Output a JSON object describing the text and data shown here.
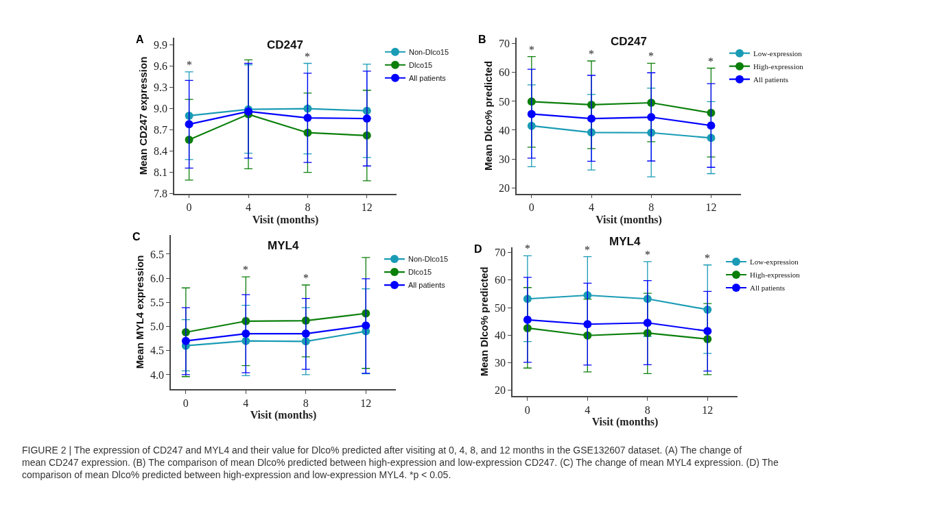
{
  "chart_data": [
    {
      "type": "line",
      "title": "CD247",
      "xlabel": "Visit (months)",
      "ylabel": "Mean CD247 expression",
      "x": [
        0,
        4,
        8,
        12
      ],
      "xlim": [
        -1,
        14
      ],
      "xticks": [
        0,
        4,
        8,
        12
      ],
      "ylim": [
        7.8,
        10.0
      ],
      "yticks": [
        7.8,
        8.1,
        8.4,
        8.7,
        {
          "value": 9,
          "label": "9.0"
        },
        9.3,
        9.6,
        9.9
      ],
      "legend": "right",
      "marker": "circle",
      "line_style": "solid",
      "series": [
        {
          "name": "Non-Dlco15",
          "color": "#1a9bb5",
          "values": [
            8.9,
            8.99,
            9.0,
            8.97
          ],
          "errors": [
            [
              8.28,
              9.52
            ],
            [
              8.37,
              9.62
            ],
            [
              8.36,
              9.64
            ],
            [
              8.31,
              9.63
            ]
          ]
        },
        {
          "name": "Dlco15",
          "color": "#0a7f0a",
          "values": [
            8.56,
            8.92,
            8.66,
            8.62
          ],
          "errors": [
            [
              7.99,
              9.13
            ],
            [
              8.15,
              9.69
            ],
            [
              8.1,
              9.22
            ],
            [
              7.98,
              9.26
            ]
          ]
        },
        {
          "name": "All patients",
          "color": "#0000ff",
          "values": [
            8.78,
            8.96,
            8.87,
            8.86
          ],
          "errors": [
            [
              8.16,
              9.4
            ],
            [
              8.3,
              9.64
            ],
            [
              8.24,
              9.5
            ],
            [
              8.19,
              9.53
            ]
          ]
        }
      ],
      "annotations": [
        "A",
        {
          "text": "*",
          "x": 0,
          "y": 9.52
        },
        {
          "text": "*",
          "x": 8,
          "y": 9.64
        },
        "FIGURE 2 | The expression of CD247 and MYL4 and their value for Dlco% predicted after visiting at 0, 4, 8, and 12 months in the GSE132607 dataset. (A) The change of mean CD247 expression. (B) The comparison of mean Dlco% predicted between high-expression and low-expression CD247. (C) The change of mean MYL4 expression. (D) The comparison of mean Dlco% predicted between high-expression and low-expression MYL4. *p < 0.05."
      ]
    },
    {
      "type": "line",
      "title": "CD247",
      "xlabel": "Visit (months)",
      "ylabel": "Mean Dlco% predicted",
      "x": [
        0,
        4,
        8,
        12
      ],
      "xlim": [
        -1,
        14
      ],
      "xticks": [
        0,
        4,
        8,
        12
      ],
      "ylim": [
        18,
        72
      ],
      "yticks": [
        20,
        30,
        40,
        50,
        60,
        70
      ],
      "legend": "right",
      "marker": "circle",
      "line_style": "solid",
      "series": [
        {
          "name": "Low-expression",
          "color": "#1a9bb5",
          "values": [
            41.5,
            39.2,
            39.1,
            37.3
          ],
          "errors": [
            [
              27.3,
              55.7
            ],
            [
              26.2,
              52.4
            ],
            [
              23.8,
              54.6
            ],
            [
              24.9,
              49.9
            ]
          ]
        },
        {
          "name": "High-expression",
          "color": "#0a7f0a",
          "values": [
            49.9,
            48.8,
            49.5,
            46.0
          ],
          "errors": [
            [
              34.1,
              65.5
            ],
            [
              33.6,
              64.0
            ],
            [
              36.0,
              63.2
            ],
            [
              30.7,
              61.5
            ]
          ]
        },
        {
          "name": "All patients",
          "color": "#0000ff",
          "values": [
            45.6,
            44.0,
            44.5,
            41.6
          ],
          "errors": [
            [
              30.3,
              61.1
            ],
            [
              29.2,
              59.0
            ],
            [
              29.3,
              59.9
            ],
            [
              27.1,
              56.1
            ]
          ]
        }
      ],
      "annotations": [
        "B",
        {
          "text": "*",
          "x": 0,
          "y": 65.5
        },
        {
          "text": "*",
          "x": 4,
          "y": 64.0
        },
        {
          "text": "*",
          "x": 8,
          "y": 63.2
        },
        {
          "text": "*",
          "x": 12,
          "y": 61.5
        }
      ]
    },
    {
      "type": "line",
      "title": "MYL4",
      "xlabel": "Visit (months)",
      "ylabel": "Mean MYL4 expression",
      "x": [
        0,
        4,
        8,
        12
      ],
      "xlim": [
        -1,
        14
      ],
      "xticks": [
        0,
        4,
        8,
        12
      ],
      "ylim": [
        3.7,
        6.9
      ],
      "yticks": [
        {
          "value": 4,
          "label": "4.0"
        },
        4.5,
        {
          "value": 5,
          "label": "5.0"
        },
        5.5,
        {
          "value": 6,
          "label": "6.0"
        },
        6.5
      ],
      "legend": "right",
      "marker": "circle",
      "line_style": "solid",
      "series": [
        {
          "name": "Non-Dlco15",
          "color": "#1a9bb5",
          "values": [
            4.6,
            4.7,
            4.69,
            4.9
          ],
          "errors": [
            [
              4.08,
              5.14
            ],
            [
              3.98,
              5.44
            ],
            [
              4.0,
              5.39
            ],
            [
              4.02,
              5.78
            ]
          ]
        },
        {
          "name": "Dlco15",
          "color": "#0a7f0a",
          "values": [
            4.88,
            5.11,
            5.12,
            5.27
          ],
          "errors": [
            [
              3.96,
              5.8
            ],
            [
              4.19,
              6.03
            ],
            [
              4.37,
              5.86
            ],
            [
              4.13,
              6.43
            ]
          ]
        },
        {
          "name": "All patients",
          "color": "#0000ff",
          "values": [
            4.7,
            4.85,
            4.85,
            5.02
          ],
          "errors": [
            [
              4.0,
              5.39
            ],
            [
              4.04,
              5.66
            ],
            [
              4.11,
              5.58
            ],
            [
              4.03,
              5.99
            ]
          ]
        }
      ],
      "annotations": [
        "C",
        {
          "text": "*",
          "x": 4,
          "y": 6.03
        },
        {
          "text": "*",
          "x": 8,
          "y": 5.86
        }
      ]
    },
    {
      "type": "line",
      "title": "MYL4",
      "xlabel": "Visit (months)",
      "ylabel": "Mean Dlco% predicted",
      "x": [
        0,
        4,
        8,
        12
      ],
      "xlim": [
        -1,
        14
      ],
      "xticks": [
        0,
        4,
        8,
        12
      ],
      "ylim": [
        18,
        72
      ],
      "yticks": [
        20,
        30,
        40,
        50,
        60,
        70
      ],
      "legend": "right",
      "marker": "circle",
      "line_style": "solid",
      "series": [
        {
          "name": "Low-expression",
          "color": "#1a9bb5",
          "values": [
            53.2,
            54.5,
            53.2,
            49.3
          ],
          "errors": [
            [
              37.7,
              68.8
            ],
            [
              40.5,
              68.5
            ],
            [
              39.6,
              66.7
            ],
            [
              33.4,
              65.5
            ]
          ]
        },
        {
          "name": "High-expression",
          "color": "#0a7f0a",
          "values": [
            42.6,
            39.9,
            40.8,
            38.6
          ],
          "errors": [
            [
              28.1,
              57.3
            ],
            [
              26.7,
              53.1
            ],
            [
              26.1,
              55.2
            ],
            [
              25.7,
              51.5
            ]
          ]
        },
        {
          "name": "All patients",
          "color": "#0000ff",
          "values": [
            45.6,
            44.0,
            44.5,
            41.5
          ],
          "errors": [
            [
              30.2,
              61.0
            ],
            [
              29.2,
              58.9
            ],
            [
              29.3,
              59.8
            ],
            [
              27.0,
              55.9
            ]
          ]
        }
      ],
      "annotations": [
        "D",
        {
          "text": "*",
          "x": 0,
          "y": 68.8
        },
        {
          "text": "*",
          "x": 4,
          "y": 68.5
        },
        {
          "text": "*",
          "x": 8,
          "y": 66.7
        },
        {
          "text": "*",
          "x": 12,
          "y": 65.5
        }
      ]
    }
  ]
}
